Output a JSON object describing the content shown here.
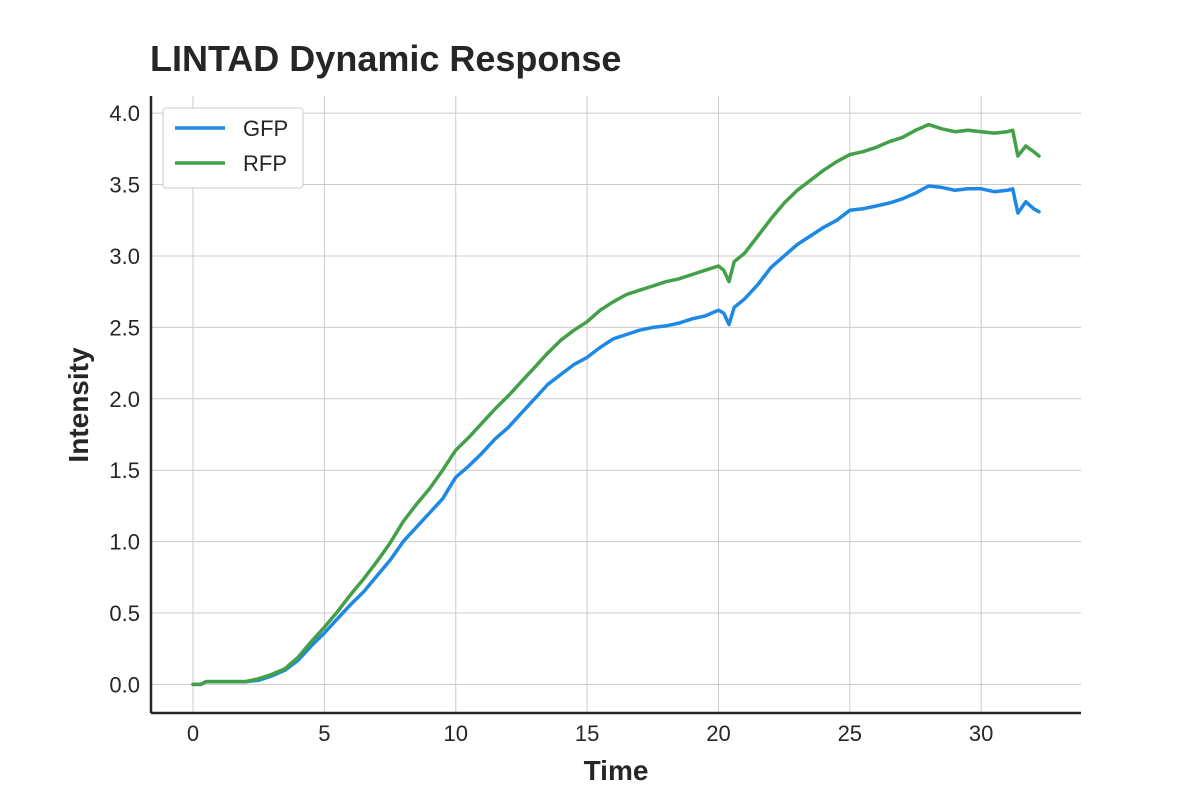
{
  "chart_data": {
    "type": "line",
    "title": "LINTAD Dynamic Response",
    "xlabel": "Time",
    "ylabel": "Intensity",
    "xlim": [
      -1.6,
      33.8
    ],
    "ylim": [
      -0.2,
      4.12
    ],
    "xticks": [
      0,
      5,
      10,
      15,
      20,
      25,
      30
    ],
    "yticks": [
      0.0,
      0.5,
      1.0,
      1.5,
      2.0,
      2.5,
      3.0,
      3.5,
      4.0
    ],
    "ytick_labels": [
      "0.0",
      "0.5",
      "1.0",
      "1.5",
      "2.0",
      "2.5",
      "3.0",
      "3.5",
      "4.0"
    ],
    "grid": true,
    "legend_position": "top-left",
    "series": [
      {
        "name": "GFP",
        "color": "#1e88e5",
        "x": [
          0,
          0.3,
          0.5,
          1,
          1.5,
          2,
          2.5,
          3,
          3.5,
          4,
          4.5,
          5,
          5.5,
          6,
          6.5,
          7,
          7.5,
          8,
          8.5,
          9,
          9.5,
          10,
          10.5,
          11,
          11.5,
          12,
          12.5,
          13,
          13.5,
          14,
          14.5,
          15,
          15.5,
          16,
          16.5,
          17,
          17.5,
          18,
          18.5,
          19,
          19.5,
          20,
          20.2,
          20.4,
          20.6,
          21,
          21.5,
          22,
          22.5,
          23,
          23.5,
          24,
          24.5,
          25,
          25.5,
          26,
          26.5,
          27,
          27.5,
          28,
          28.5,
          29,
          29.5,
          30,
          30.5,
          31,
          31.2,
          31.4,
          31.7,
          32,
          32.2
        ],
        "values": [
          0,
          0,
          0.02,
          0.02,
          0.02,
          0.02,
          0.03,
          0.06,
          0.1,
          0.17,
          0.27,
          0.36,
          0.46,
          0.56,
          0.65,
          0.76,
          0.87,
          1.0,
          1.1,
          1.2,
          1.3,
          1.45,
          1.53,
          1.62,
          1.72,
          1.8,
          1.9,
          2.0,
          2.1,
          2.17,
          2.24,
          2.29,
          2.36,
          2.42,
          2.45,
          2.48,
          2.5,
          2.51,
          2.53,
          2.56,
          2.58,
          2.62,
          2.6,
          2.52,
          2.64,
          2.7,
          2.8,
          2.92,
          3.0,
          3.08,
          3.14,
          3.2,
          3.25,
          3.32,
          3.33,
          3.35,
          3.37,
          3.4,
          3.44,
          3.49,
          3.48,
          3.46,
          3.47,
          3.47,
          3.45,
          3.46,
          3.47,
          3.3,
          3.38,
          3.33,
          3.31
        ]
      },
      {
        "name": "RFP",
        "color": "#43a047",
        "x": [
          0,
          0.3,
          0.5,
          1,
          1.5,
          2,
          2.5,
          3,
          3.5,
          4,
          4.5,
          5,
          5.5,
          6,
          6.5,
          7,
          7.5,
          8,
          8.5,
          9,
          9.5,
          10,
          10.5,
          11,
          11.5,
          12,
          12.5,
          13,
          13.5,
          14,
          14.5,
          15,
          15.5,
          16,
          16.5,
          17,
          17.5,
          18,
          18.5,
          19,
          19.5,
          20,
          20.2,
          20.4,
          20.6,
          21,
          21.5,
          22,
          22.5,
          23,
          23.5,
          24,
          24.5,
          25,
          25.5,
          26,
          26.5,
          27,
          27.5,
          28,
          28.5,
          29,
          29.5,
          30,
          30.5,
          31,
          31.2,
          31.4,
          31.7,
          32,
          32.2
        ],
        "values": [
          0,
          0,
          0.02,
          0.02,
          0.02,
          0.02,
          0.04,
          0.07,
          0.11,
          0.19,
          0.3,
          0.4,
          0.51,
          0.63,
          0.74,
          0.86,
          0.99,
          1.14,
          1.26,
          1.37,
          1.5,
          1.64,
          1.73,
          1.83,
          1.93,
          2.02,
          2.12,
          2.22,
          2.32,
          2.41,
          2.48,
          2.54,
          2.62,
          2.68,
          2.73,
          2.76,
          2.79,
          2.82,
          2.84,
          2.87,
          2.9,
          2.93,
          2.9,
          2.82,
          2.96,
          3.02,
          3.14,
          3.26,
          3.37,
          3.46,
          3.53,
          3.6,
          3.66,
          3.71,
          3.73,
          3.76,
          3.8,
          3.83,
          3.88,
          3.92,
          3.89,
          3.87,
          3.88,
          3.87,
          3.86,
          3.87,
          3.88,
          3.7,
          3.77,
          3.73,
          3.7
        ]
      }
    ]
  }
}
